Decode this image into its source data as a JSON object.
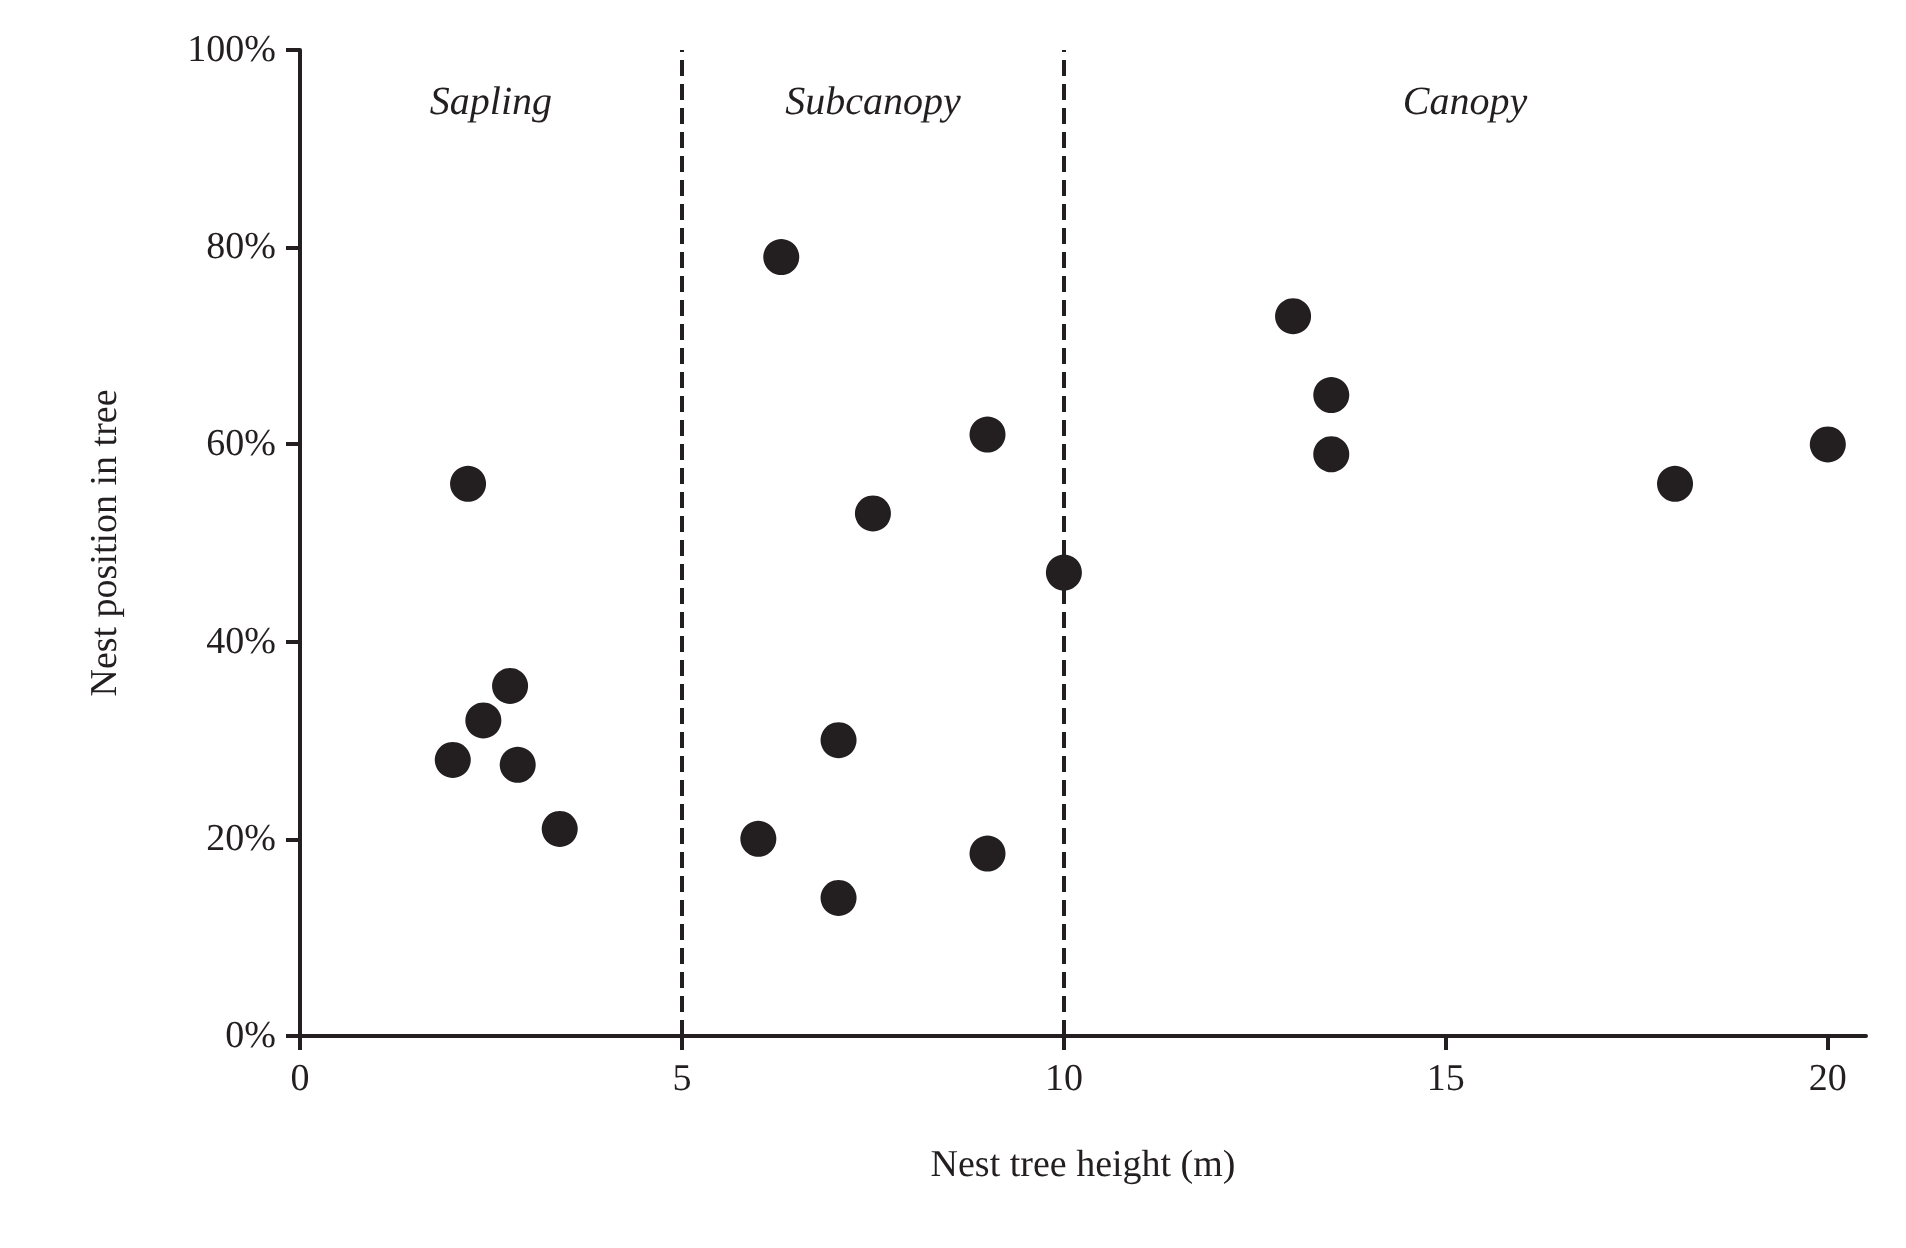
{
  "chart_data": {
    "type": "scatter",
    "xlabel": "Nest tree height (m)",
    "ylabel": "Nest position in tree",
    "x": [
      2.2,
      2.75,
      2.4,
      2.0,
      2.85,
      3.4,
      6.3,
      9.0,
      7.5,
      10.0,
      7.05,
      6.0,
      9.0,
      7.05,
      13.0,
      13.5,
      13.5,
      18.0,
      20.0
    ],
    "values": [
      56,
      35.5,
      32,
      28,
      27.5,
      21,
      79,
      61,
      53,
      47,
      30,
      20,
      18.5,
      14,
      73,
      65,
      59,
      56,
      60
    ],
    "color": "#231f20",
    "marker": "circle",
    "grid": false,
    "xlim": [
      0,
      20.5
    ],
    "xticks": [
      0,
      5,
      10,
      15,
      20
    ],
    "ylim": [
      0,
      100
    ],
    "yticks": [
      {
        "value": 0,
        "label": "0%"
      },
      {
        "value": 20,
        "label": "20%"
      },
      {
        "value": 40,
        "label": "40%"
      },
      {
        "value": 60,
        "label": "60%"
      },
      {
        "value": 80,
        "label": "80%"
      },
      {
        "value": 100,
        "label": "100%"
      }
    ],
    "ref_lines": [
      {
        "axis": "x",
        "value": 5,
        "line_style": "dashed",
        "color": "#231f20"
      },
      {
        "axis": "x",
        "value": 10,
        "line_style": "dashed",
        "color": "#231f20"
      }
    ],
    "annotations": [
      "Sapling",
      "Subcanopy",
      "Canopy"
    ]
  }
}
